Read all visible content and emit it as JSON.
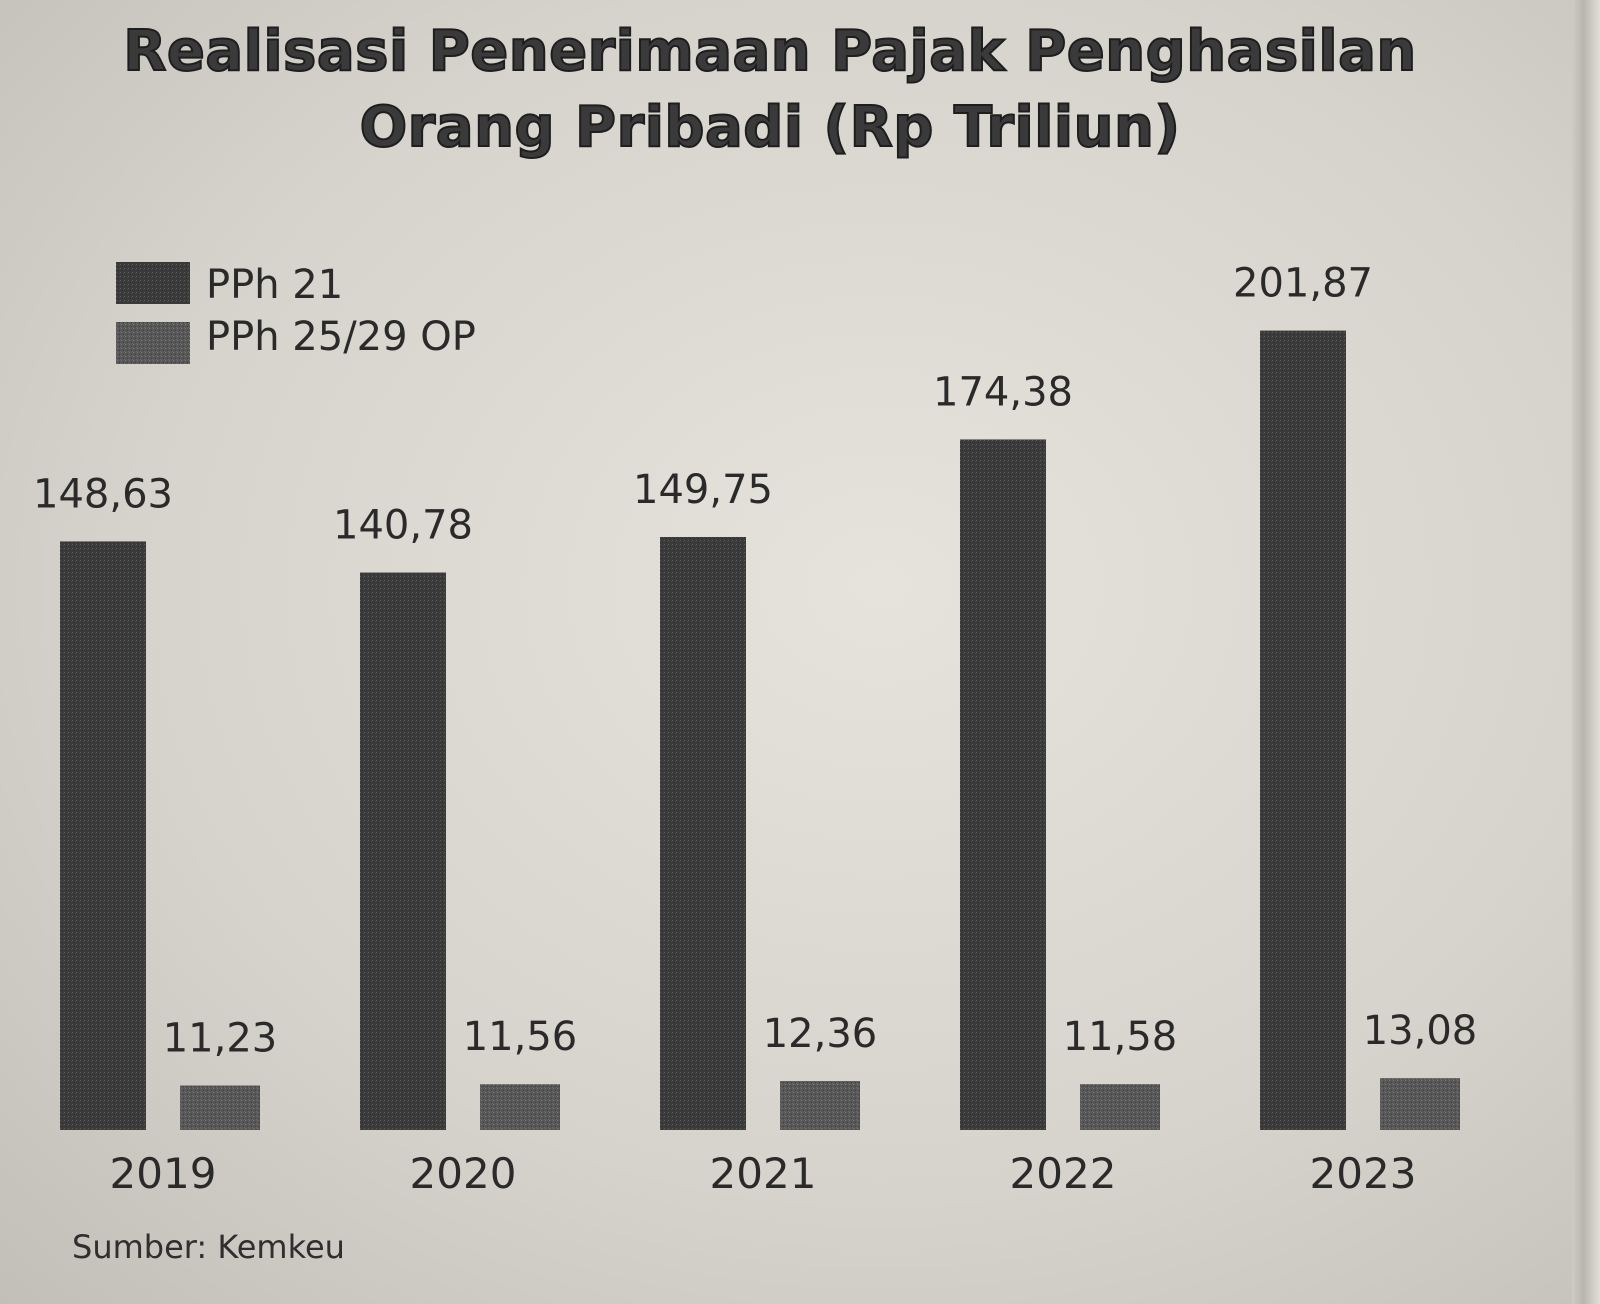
{
  "chart_data": {
    "type": "bar",
    "title_line1": "Realisasi Penerimaan Pajak Penghasilan",
    "title_line2": "Orang Pribadi (Rp Triliun)",
    "categories": [
      "2019",
      "2020",
      "2021",
      "2022",
      "2023"
    ],
    "series": [
      {
        "name": "PPh 21",
        "values": [
          148.63,
          140.78,
          149.75,
          174.38,
          201.87
        ],
        "labels": [
          "148,63",
          "140,78",
          "149,75",
          "174,38",
          "201,87"
        ],
        "color": "#3b3b3b"
      },
      {
        "name": "PPh 25/29 OP",
        "values": [
          11.23,
          11.56,
          12.36,
          11.58,
          13.08
        ],
        "labels": [
          "11,23",
          "11,56",
          "12,36",
          "11,58",
          "13,08"
        ],
        "color": "#555555"
      }
    ],
    "legend_position": "top-left",
    "grid": false,
    "axes_visible": false,
    "source": "Sumber: Kemkeu"
  }
}
